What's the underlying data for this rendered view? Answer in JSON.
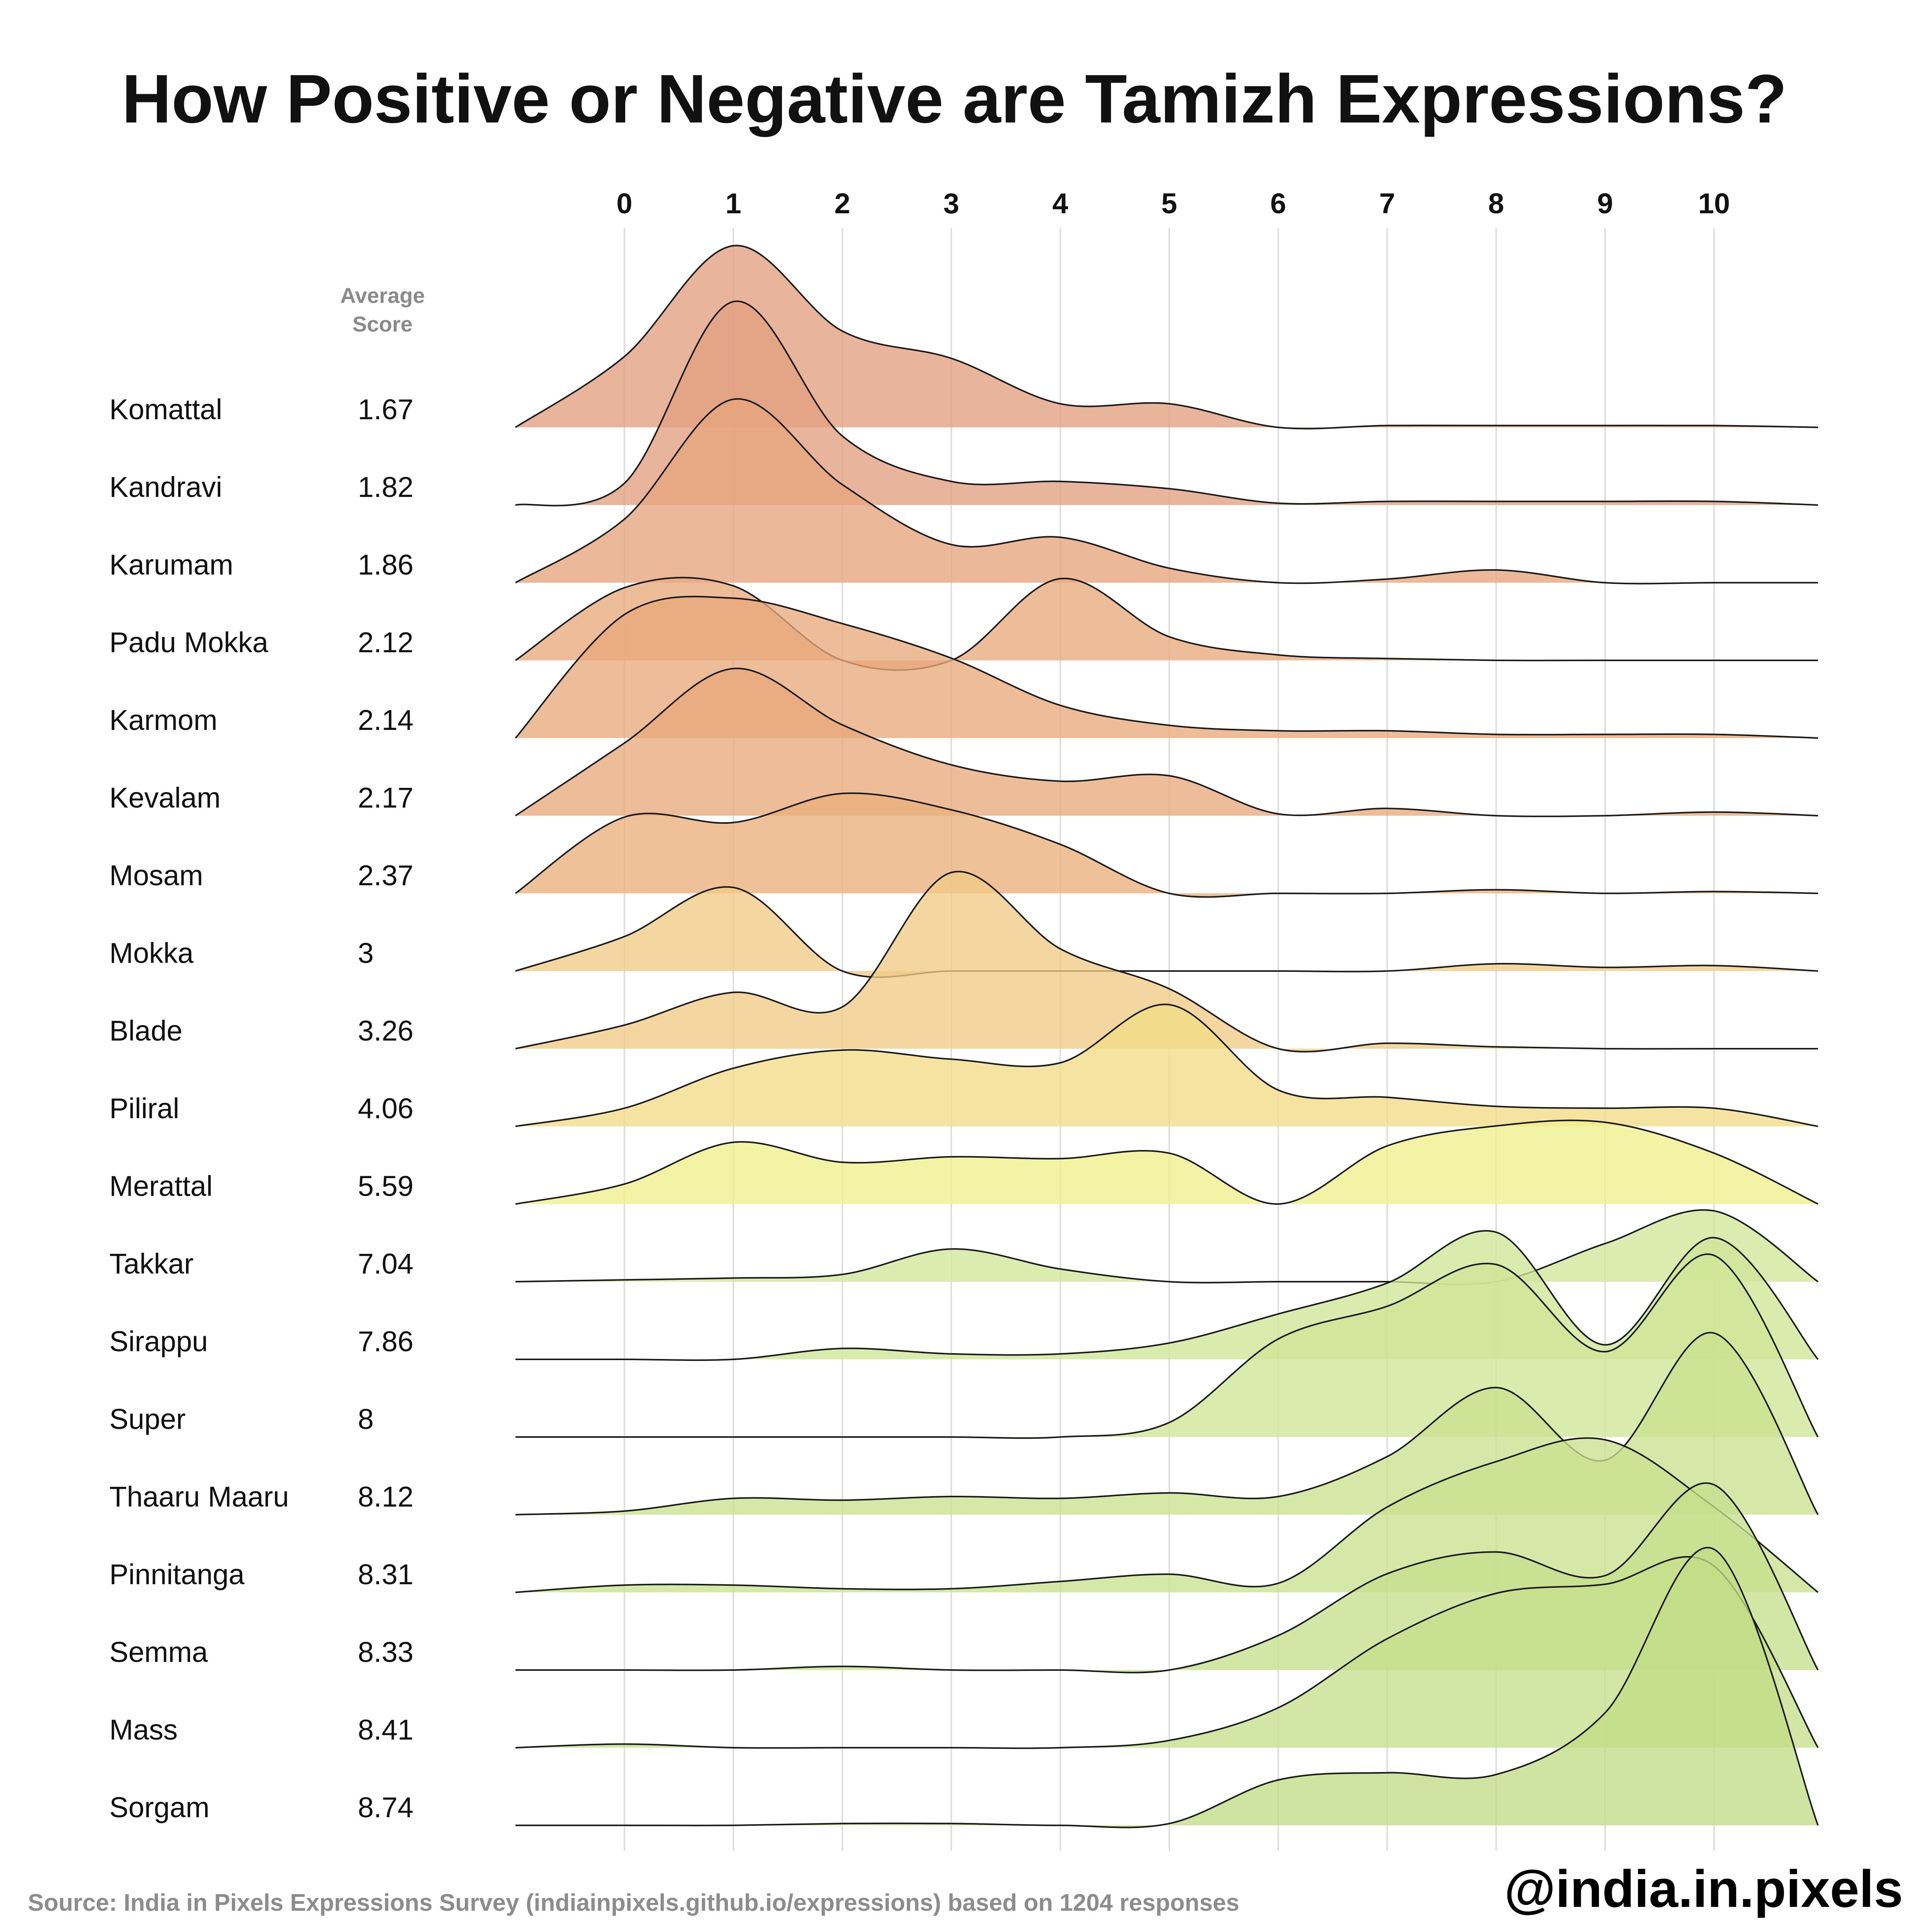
{
  "title": "How Positive or Negative are Tamizh Expressions?",
  "average_header_line1": "Average",
  "average_header_line2": "Score",
  "source": "Source: India in Pixels Expressions Survey (indiainpixels.github.io/expressions) based on 1204 responses",
  "handle": "@india.in.pixels",
  "chart_data": {
    "type": "ridgeline",
    "x_ticks": [
      "0",
      "1",
      "2",
      "3",
      "4",
      "5",
      "6",
      "7",
      "8",
      "9",
      "10"
    ],
    "xlim": [
      -1,
      11
    ],
    "grid": true,
    "series": [
      {
        "name": "Komattal",
        "average": "1.67",
        "color": "#e39f80",
        "x": [
          -1,
          0,
          1,
          2,
          3,
          4,
          5,
          6,
          7,
          8,
          9,
          10,
          11
        ],
        "density": [
          0.0,
          0.39,
          1.0,
          0.53,
          0.38,
          0.13,
          0.13,
          0.0,
          0.01,
          0.01,
          0.01,
          0.01,
          0.0
        ]
      },
      {
        "name": "Kandravi",
        "average": "1.82",
        "color": "#e39f80",
        "x": [
          -1,
          0,
          1,
          2,
          3,
          4,
          5,
          6,
          7,
          8,
          9,
          10,
          11
        ],
        "density": [
          0.0,
          0.12,
          1.12,
          0.38,
          0.13,
          0.13,
          0.09,
          0.01,
          0.02,
          0.02,
          0.02,
          0.02,
          0.0
        ]
      },
      {
        "name": "Karumam",
        "average": "1.86",
        "color": "#e6a57c",
        "x": [
          -1,
          0,
          1,
          2,
          3,
          4,
          5,
          6,
          7,
          8,
          9,
          10,
          11
        ],
        "density": [
          0.0,
          0.35,
          1.01,
          0.54,
          0.21,
          0.25,
          0.08,
          0.0,
          0.02,
          0.07,
          0.0,
          0.0,
          0.0
        ]
      },
      {
        "name": "Padu Mokka",
        "average": "2.12",
        "color": "#e8a97b",
        "x": [
          -1,
          0,
          1,
          2,
          3,
          4,
          5,
          6,
          7,
          8,
          9,
          10,
          11
        ],
        "density": [
          0.0,
          0.4,
          0.41,
          0.0,
          0.0,
          0.45,
          0.13,
          0.03,
          0.01,
          0.0,
          0.0,
          0.0,
          0.0
        ]
      },
      {
        "name": "Karmom",
        "average": "2.14",
        "color": "#e8a97b",
        "x": [
          -1,
          0,
          1,
          2,
          3,
          4,
          5,
          6,
          7,
          8,
          9,
          10,
          11
        ],
        "density": [
          0.0,
          0.68,
          0.77,
          0.63,
          0.44,
          0.18,
          0.07,
          0.04,
          0.04,
          0.02,
          0.02,
          0.02,
          0.0
        ]
      },
      {
        "name": "Kevalam",
        "average": "2.17",
        "color": "#e8a97b",
        "x": [
          -1,
          0,
          1,
          2,
          3,
          4,
          5,
          6,
          7,
          8,
          9,
          10,
          11
        ],
        "density": [
          0.0,
          0.4,
          0.81,
          0.5,
          0.28,
          0.19,
          0.22,
          0.01,
          0.04,
          0.0,
          0.0,
          0.02,
          0.0
        ]
      },
      {
        "name": "Mosam",
        "average": "2.37",
        "color": "#ebb07c",
        "x": [
          -1,
          0,
          1,
          2,
          3,
          4,
          5,
          6,
          7,
          8,
          9,
          10,
          11
        ],
        "density": [
          0.0,
          0.42,
          0.39,
          0.55,
          0.46,
          0.27,
          0.0,
          0.0,
          0.0,
          0.02,
          0.0,
          0.01,
          0.0
        ]
      },
      {
        "name": "Mokka",
        "average": "3",
        "color": "#efca85",
        "x": [
          -1,
          0,
          1,
          2,
          3,
          4,
          5,
          6,
          7,
          8,
          9,
          10,
          11
        ],
        "density": [
          0.0,
          0.19,
          0.46,
          0.0,
          0.0,
          0.0,
          0.0,
          0.0,
          0.0,
          0.04,
          0.02,
          0.03,
          0.0
        ]
      },
      {
        "name": "Blade",
        "average": "3.26",
        "color": "#efca85",
        "x": [
          -1,
          0,
          1,
          2,
          3,
          4,
          5,
          6,
          7,
          8,
          9,
          10,
          11
        ],
        "density": [
          0.0,
          0.13,
          0.31,
          0.23,
          0.97,
          0.55,
          0.33,
          0.0,
          0.03,
          0.01,
          0.0,
          0.0,
          0.0
        ]
      },
      {
        "name": "Piliral",
        "average": "4.06",
        "color": "#f2dc86",
        "x": [
          -1,
          0,
          1,
          2,
          3,
          4,
          5,
          6,
          7,
          8,
          9,
          10,
          11
        ],
        "density": [
          0.0,
          0.1,
          0.32,
          0.42,
          0.37,
          0.35,
          0.67,
          0.2,
          0.16,
          0.11,
          0.1,
          0.1,
          0.0
        ]
      },
      {
        "name": "Merattal",
        "average": "5.59",
        "color": "#eff08c",
        "x": [
          -1,
          0,
          1,
          2,
          3,
          4,
          5,
          6,
          7,
          8,
          9,
          10,
          11
        ],
        "density": [
          0.0,
          0.11,
          0.34,
          0.23,
          0.26,
          0.25,
          0.28,
          0.0,
          0.32,
          0.43,
          0.45,
          0.28,
          0.0
        ]
      },
      {
        "name": "Takkar",
        "average": "7.04",
        "color": "#d2e79a",
        "x": [
          -1,
          0,
          1,
          2,
          3,
          4,
          5,
          6,
          7,
          8,
          9,
          10,
          11
        ],
        "density": [
          0.0,
          0.01,
          0.02,
          0.04,
          0.18,
          0.07,
          0.0,
          0.0,
          0.0,
          0.0,
          0.21,
          0.39,
          0.0
        ]
      },
      {
        "name": "Sirappu",
        "average": "7.86",
        "color": "#cfe597",
        "x": [
          -1,
          0,
          1,
          2,
          3,
          4,
          5,
          6,
          7,
          8,
          9,
          10,
          11
        ],
        "density": [
          0.0,
          0.0,
          0.0,
          0.06,
          0.03,
          0.03,
          0.09,
          0.25,
          0.42,
          0.7,
          0.08,
          0.67,
          0.0
        ]
      },
      {
        "name": "Super",
        "average": "8",
        "color": "#cfe597",
        "x": [
          -1,
          0,
          1,
          2,
          3,
          4,
          5,
          6,
          7,
          8,
          9,
          10,
          11
        ],
        "density": [
          0.0,
          0.0,
          0.0,
          0.0,
          0.0,
          0.0,
          0.08,
          0.54,
          0.72,
          0.95,
          0.47,
          1.0,
          0.0
        ]
      },
      {
        "name": "Thaaru Maaru",
        "average": "8.12",
        "color": "#c9e290",
        "x": [
          -1,
          0,
          1,
          2,
          3,
          4,
          5,
          6,
          7,
          8,
          9,
          10,
          11
        ],
        "density": [
          0.0,
          0.02,
          0.09,
          0.08,
          0.1,
          0.09,
          0.12,
          0.1,
          0.32,
          0.7,
          0.3,
          1.0,
          0.0
        ]
      },
      {
        "name": "Pinnitanga",
        "average": "8.31",
        "color": "#c9e290",
        "x": [
          -1,
          0,
          1,
          2,
          3,
          4,
          5,
          6,
          7,
          8,
          9,
          10,
          11
        ],
        "density": [
          0.0,
          0.04,
          0.04,
          0.02,
          0.02,
          0.06,
          0.1,
          0.05,
          0.47,
          0.72,
          0.84,
          0.47,
          0.0
        ]
      },
      {
        "name": "Semma",
        "average": "8.33",
        "color": "#c5df8c",
        "x": [
          -1,
          0,
          1,
          2,
          3,
          4,
          5,
          6,
          7,
          8,
          9,
          10,
          11
        ],
        "density": [
          0.0,
          0.0,
          0.0,
          0.02,
          0.0,
          0.0,
          0.0,
          0.19,
          0.53,
          0.65,
          0.52,
          1.02,
          0.0
        ]
      },
      {
        "name": "Mass",
        "average": "8.41",
        "color": "#c5df8c",
        "x": [
          -1,
          0,
          1,
          2,
          3,
          4,
          5,
          6,
          7,
          8,
          9,
          10,
          11
        ],
        "density": [
          0.0,
          0.02,
          0.0,
          0.0,
          0.0,
          0.0,
          0.04,
          0.22,
          0.6,
          0.85,
          0.9,
          1.0,
          0.0
        ]
      },
      {
        "name": "Sorgam",
        "average": "8.74",
        "color": "#c1dd86",
        "x": [
          -1,
          0,
          1,
          2,
          3,
          4,
          5,
          6,
          7,
          8,
          9,
          10,
          11
        ],
        "density": [
          0.0,
          0.0,
          0.0,
          0.01,
          0.01,
          0.0,
          0.01,
          0.25,
          0.29,
          0.28,
          0.62,
          1.52,
          0.0
        ]
      }
    ]
  }
}
